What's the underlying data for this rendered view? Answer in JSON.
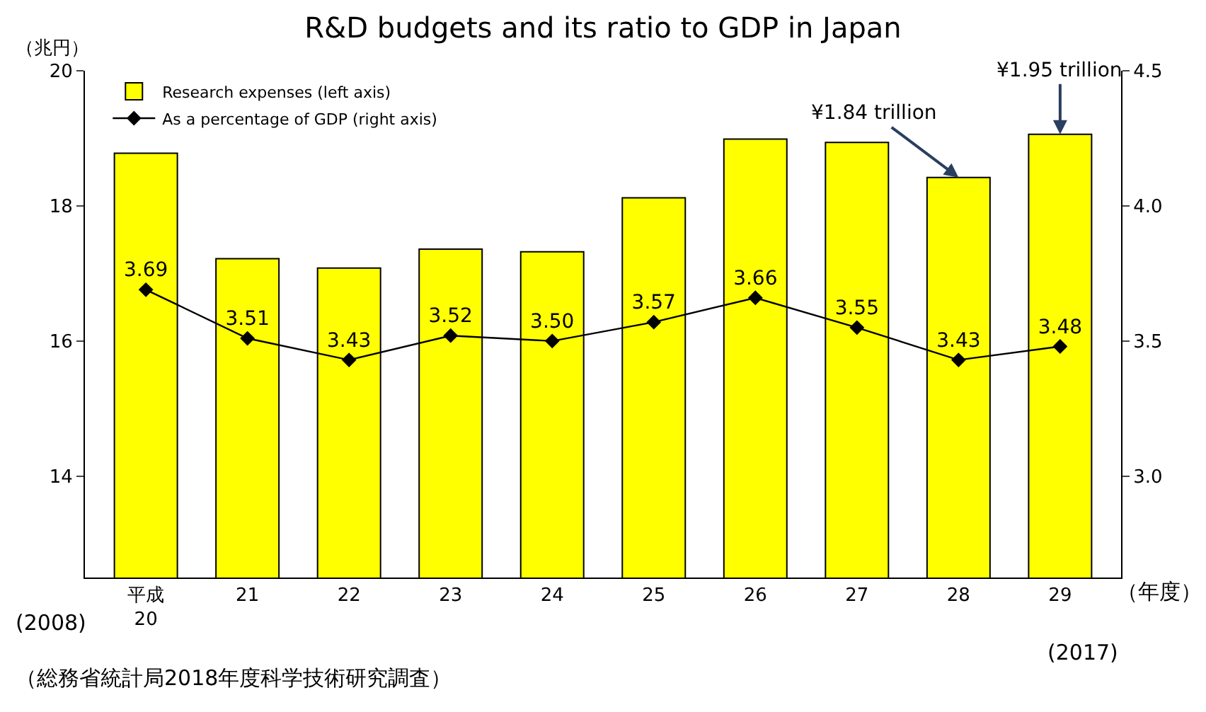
{
  "chart_data": {
    "type": "bar",
    "title": "R&D budgets and its ratio to GDP in Japan",
    "ylabel": "（兆円）",
    "categories": [
      "平成\n20",
      "21",
      "22",
      "23",
      "24",
      "25",
      "26",
      "27",
      "28",
      "29"
    ],
    "series": [
      {
        "name": "Research expenses (left axis)",
        "color": "#ffff00",
        "values": [
          18.78,
          17.22,
          17.08,
          17.36,
          17.32,
          18.12,
          18.99,
          18.94,
          18.42,
          19.06
        ]
      },
      {
        "name": "As a percentage of GDP (right axis)",
        "type": "line",
        "axis": "y2",
        "color": "#000000",
        "marker": "diamond",
        "values": [
          3.69,
          3.51,
          3.43,
          3.52,
          3.5,
          3.57,
          3.66,
          3.55,
          3.43,
          3.48
        ],
        "value_labels": [
          "3.69",
          "3.51",
          "3.43",
          "3.52",
          "3.50",
          "3.57",
          "3.66",
          "3.55",
          "3.43",
          "3.48"
        ]
      }
    ],
    "ylim": [
      12.5,
      20
    ],
    "yticks": [
      14,
      16,
      18,
      20
    ],
    "y2lim": [
      2.625,
      4.5
    ],
    "y2ticks": [
      {
        "value": 3,
        "label": "3.0"
      },
      {
        "value": 3.5,
        "label": "3.5"
      },
      {
        "value": 4,
        "label": "4.0"
      },
      {
        "value": 4.5,
        "label": "4.5"
      }
    ],
    "legend": "top left",
    "annotations": [
      {
        "text": "¥1.84 trillion",
        "x": "28",
        "y": 18.42
      },
      {
        "text": "¥1.95 trillion",
        "x": "29",
        "y": 19.06
      },
      "(2008)",
      "(2017)",
      "（年度）",
      "（総務省統計局2018年度科学技術研究調査）"
    ]
  }
}
